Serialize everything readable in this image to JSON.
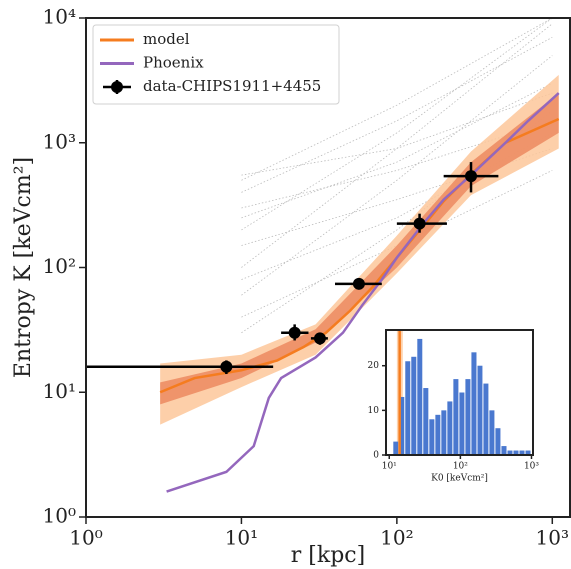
{
  "chart_data": [
    {
      "type": "line",
      "xlabel": "r [kpc]",
      "ylabel": "Entropy K [keVcm²]",
      "xscale": "log",
      "yscale": "log",
      "xlim": [
        1,
        1300
      ],
      "ylim": [
        1,
        10000
      ],
      "xticks": [
        {
          "value": 1,
          "label": "10⁰"
        },
        {
          "value": 10,
          "label": "10¹"
        },
        {
          "value": 100,
          "label": "10²"
        },
        {
          "value": 1000,
          "label": "10³"
        }
      ],
      "yticks": [
        {
          "value": 1,
          "label": "10⁰"
        },
        {
          "value": 10,
          "label": "10¹"
        },
        {
          "value": 100,
          "label": "10²"
        },
        {
          "value": 1000,
          "label": "10³"
        },
        {
          "value": 10000,
          "label": "10⁴"
        }
      ],
      "legend": "upper left",
      "bands": [
        {
          "color": "#fdc79a",
          "x": [
            3,
            10,
            30,
            100,
            300,
            1100
          ],
          "lo": [
            5.5,
            11,
            20,
            90,
            380,
            900
          ],
          "hi": [
            17,
            20,
            35,
            180,
            850,
            3500
          ]
        },
        {
          "color": "#ec8a60",
          "x": [
            3,
            10,
            30,
            100,
            300,
            1100
          ],
          "lo": [
            8,
            13,
            25,
            100,
            450,
            1200
          ],
          "hi": [
            12,
            17,
            32,
            150,
            700,
            2500
          ]
        }
      ],
      "samples": [
        {
          "x": [
            10,
            100,
            1000
          ],
          "y": [
            30,
            200,
            1800
          ]
        },
        {
          "x": [
            10,
            100,
            1000
          ],
          "y": [
            60,
            500,
            5000
          ]
        },
        {
          "x": [
            10,
            100,
            1000
          ],
          "y": [
            100,
            900,
            9000
          ]
        },
        {
          "x": [
            10,
            100,
            1000
          ],
          "y": [
            200,
            1200,
            10000
          ]
        },
        {
          "x": [
            10,
            100,
            1000
          ],
          "y": [
            400,
            1500,
            7000
          ]
        },
        {
          "x": [
            10,
            100,
            1000
          ],
          "y": [
            550,
            900,
            2500
          ]
        },
        {
          "x": [
            10,
            100,
            1000
          ],
          "y": [
            300,
            600,
            1500
          ]
        },
        {
          "x": [
            10,
            100,
            1000
          ],
          "y": [
            150,
            350,
            900
          ]
        },
        {
          "x": [
            10,
            100,
            1000
          ],
          "y": [
            80,
            250,
            1200
          ]
        },
        {
          "x": [
            10,
            100,
            1000
          ],
          "y": [
            40,
            150,
            600
          ]
        },
        {
          "x": [
            10,
            100,
            1000
          ],
          "y": [
            250,
            700,
            3000
          ]
        },
        {
          "x": [
            10,
            100,
            1000
          ],
          "y": [
            500,
            2000,
            10000
          ]
        }
      ],
      "series": [
        {
          "name": "model",
          "color": "#f57c1f",
          "x": [
            3,
            5,
            10,
            17,
            25,
            35,
            50,
            70,
            100,
            150,
            200,
            300,
            500,
            1100
          ],
          "y": [
            10,
            13,
            15,
            18,
            23,
            30,
            45,
            70,
            120,
            220,
            340,
            560,
            1000,
            1550
          ]
        },
        {
          "name": "Phoenix",
          "color": "#9467bd",
          "x": [
            3.3,
            8,
            12,
            15,
            18,
            30,
            45,
            60,
            80,
            100,
            150,
            200,
            300,
            500,
            700,
            1100
          ],
          "y": [
            1.6,
            2.3,
            3.7,
            9,
            13,
            19,
            30,
            50,
            80,
            120,
            230,
            350,
            550,
            1000,
            1500,
            2500
          ]
        },
        {
          "name": "data-CHIPS1911+4455",
          "color": "#000000",
          "x": [
            8,
            22,
            32,
            57,
            140,
            300
          ],
          "y": [
            16,
            30,
            27,
            74,
            225,
            540
          ],
          "xlo": [
            1,
            18,
            28,
            40,
            100,
            200
          ],
          "xhi": [
            16,
            27,
            36,
            80,
            210,
            450
          ],
          "ylo": [
            14,
            26,
            24,
            68,
            190,
            400
          ],
          "yhi": [
            18,
            35,
            30,
            80,
            270,
            700
          ]
        }
      ]
    },
    {
      "type": "histogram",
      "xlabel": "K0 [keVcm²]",
      "xscale": "log",
      "xlim": [
        9,
        1050
      ],
      "ylim": [
        0,
        28
      ],
      "xticks": [
        {
          "value": 10,
          "label": "10¹"
        },
        {
          "value": 100,
          "label": "10²"
        },
        {
          "value": 1000,
          "label": "10³"
        }
      ],
      "yticks": [
        0,
        10,
        20
      ],
      "color": "#4a78cf",
      "bins": [
        11.4,
        13.8,
        16.8,
        20.4,
        24.8,
        30.1,
        36.6,
        44.5,
        54.0,
        65.6,
        79.7,
        96.9,
        117.7,
        143,
        174,
        211,
        256,
        311,
        378,
        460,
        558,
        678,
        824,
        1001
      ],
      "counts": [
        3,
        13,
        21,
        22,
        26,
        15,
        8,
        9,
        10,
        12,
        17,
        14,
        17,
        23,
        20,
        16,
        10,
        6,
        2,
        1,
        1,
        1,
        1
      ],
      "vline": 14,
      "vline_color": "#f57c1f",
      "vband": [
        12.8,
        15.5
      ]
    }
  ]
}
